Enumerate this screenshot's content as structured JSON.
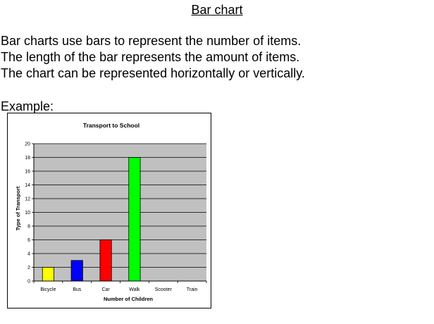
{
  "page": {
    "title": "Bar chart",
    "lines": [
      "Bar charts use bars to represent the number of items.",
      "The length of the bar represents the amount of items.",
      "The chart can be represented horizontally or vertically."
    ],
    "example_label": "Example:"
  },
  "chart_data": {
    "type": "bar",
    "title": "Transport to School",
    "xlabel": "Number of Children",
    "ylabel": "Type of Transport",
    "categories": [
      "Bicycle",
      "Bus",
      "Car",
      "Walk",
      "Scooter",
      "Train"
    ],
    "values": [
      2,
      3,
      6,
      18,
      0,
      0
    ],
    "colors": [
      "#ffff00",
      "#0000ff",
      "#ff0000",
      "#00ff00",
      "#ffffff",
      "#ffffff"
    ],
    "ylim": [
      0,
      20
    ],
    "yticks": [
      0,
      2,
      4,
      6,
      8,
      10,
      12,
      14,
      16,
      18,
      20
    ],
    "grid": true,
    "plot_background": "#c0c0c0",
    "legend": "none"
  }
}
